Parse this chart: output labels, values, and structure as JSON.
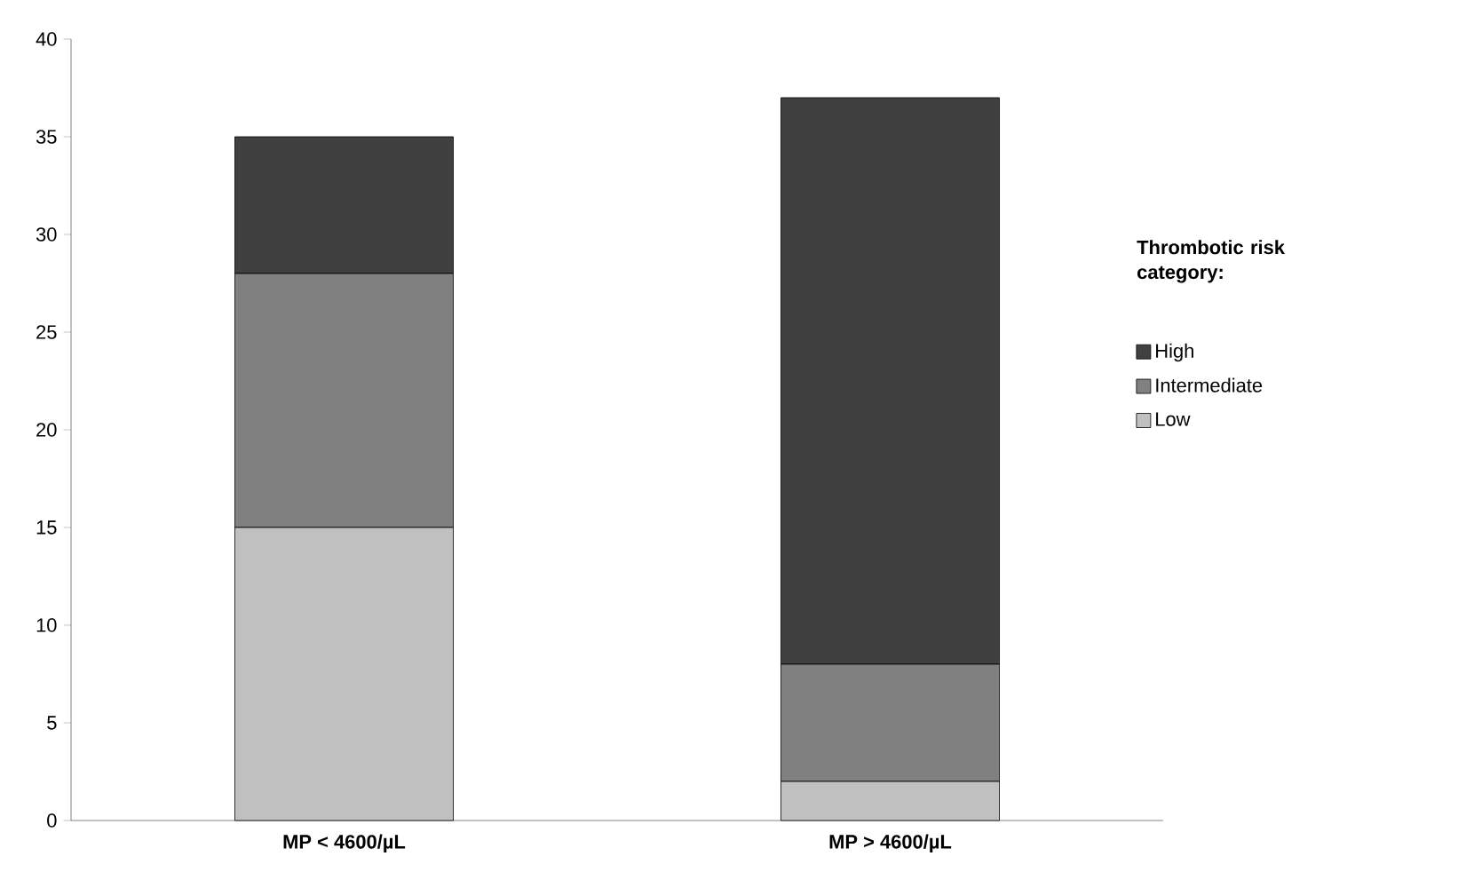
{
  "chart_data": {
    "type": "bar",
    "stacked": true,
    "categories": [
      "MP < 4600/µL",
      "MP > 4600/µL"
    ],
    "series": [
      {
        "name": "Low",
        "color": "#c0c0c0",
        "values": [
          15,
          2
        ]
      },
      {
        "name": "Intermediate",
        "color": "#808080",
        "values": [
          13,
          6
        ]
      },
      {
        "name": "High",
        "color": "#404040",
        "values": [
          7,
          29
        ]
      }
    ],
    "legend_title": "Thrombotic risk category:",
    "legend": "right",
    "ylim": [
      0,
      40
    ],
    "yticks": [
      0,
      5,
      10,
      15,
      20,
      25,
      30,
      35,
      40
    ]
  }
}
